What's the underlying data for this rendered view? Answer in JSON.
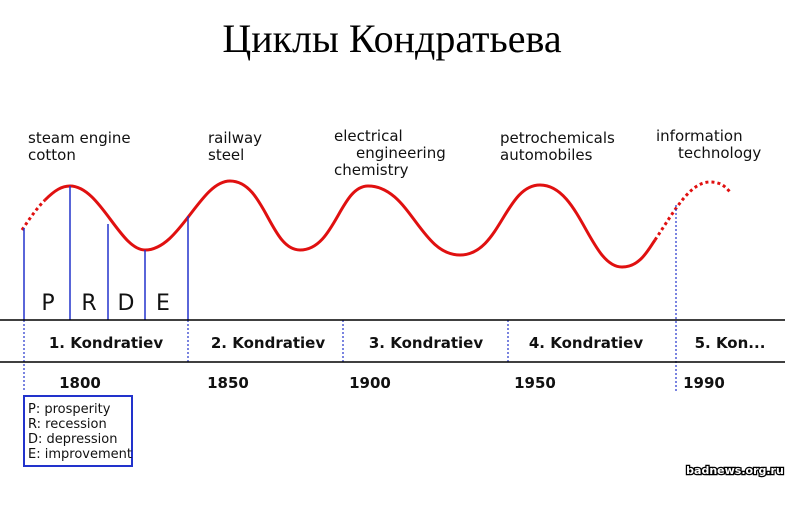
{
  "title": "Циклы Кондратьева",
  "innovations": [
    {
      "lines": [
        "steam engine",
        "cotton"
      ]
    },
    {
      "lines": [
        "railway",
        "steel"
      ]
    },
    {
      "lines": [
        "electrical",
        "engineering",
        "chemistry"
      ]
    },
    {
      "lines": [
        "petrochemicals",
        "automobiles"
      ]
    },
    {
      "lines": [
        "information",
        "technology"
      ]
    }
  ],
  "phases": [
    "P",
    "R",
    "D",
    "E"
  ],
  "cycles": [
    "1. Kondratiev",
    "2. Kondratiev",
    "3. Kondratiev",
    "4. Kondratiev",
    "5. Kon..."
  ],
  "years": [
    "1800",
    "1850",
    "1900",
    "1950",
    "1990"
  ],
  "legend": [
    "P: prosperity",
    "R: recession",
    "D: depression",
    "E: improvement"
  ],
  "watermark": "badnews.org.ru"
}
